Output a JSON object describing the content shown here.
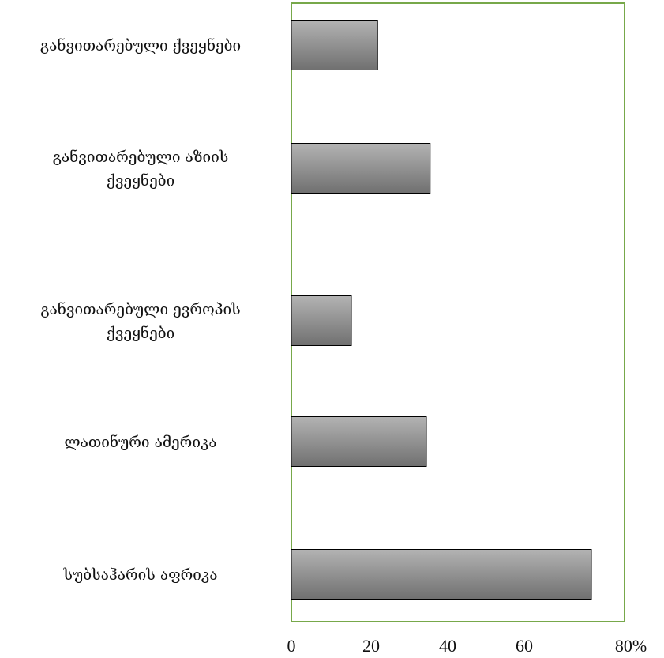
{
  "chart_data": {
    "type": "bar",
    "orientation": "horizontal",
    "categories": [
      [
        "განვითარებული ქვეყნები"
      ],
      [
        "განვითარებული აზიის",
        "ქვეყნები"
      ],
      [
        "განვითარებული ევროპის",
        "ქვეყნები"
      ],
      [
        "ლათინური ამერიკა"
      ],
      [
        "სუბსაჰარის აფრიკა"
      ]
    ],
    "values": [
      23,
      37,
      16,
      36,
      80
    ],
    "x_ticks": [
      "0",
      "20",
      "40",
      "60",
      "80%"
    ],
    "xlim": [
      0,
      90
    ],
    "title": "",
    "xlabel": "",
    "ylabel": "",
    "grid": false,
    "legend": "none",
    "colors": {
      "bar_fill_top": "#b3b3b3",
      "bar_fill_bottom": "#707070",
      "bar_stroke": "#000000",
      "plot_border": "#77a84a"
    }
  }
}
